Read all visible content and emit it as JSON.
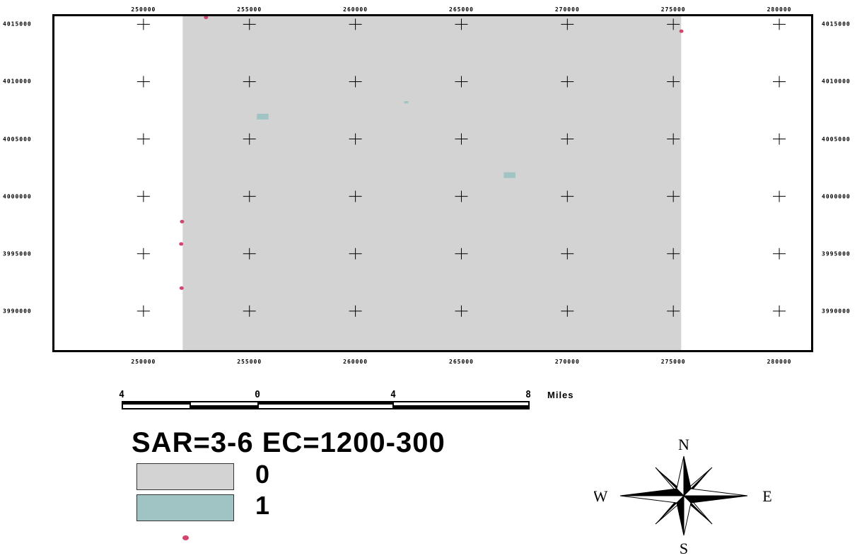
{
  "map": {
    "x_ticks": [
      "250000",
      "255000",
      "260000",
      "265000",
      "270000",
      "275000",
      "280000"
    ],
    "y_ticks": [
      "4015000",
      "4010000",
      "4005000",
      "4000000",
      "3995000",
      "3990000"
    ],
    "x_range": [
      245800,
      281500
    ],
    "y_range": [
      3986600,
      4015700
    ],
    "raster_extent": {
      "x": [
        251850,
        275370
      ],
      "y": [
        3986600,
        4015700
      ]
    },
    "class_patches": [
      {
        "class": "1",
        "x": [
          255350,
          255900
        ],
        "y": [
          4006700,
          4007200
        ]
      },
      {
        "class": "1",
        "x": [
          262300,
          262500
        ],
        "y": [
          4008100,
          4008300
        ]
      },
      {
        "class": "1",
        "x": [
          267000,
          267550
        ],
        "y": [
          4001600,
          4002100
        ]
      }
    ],
    "points": [
      {
        "x": 252950,
        "y": 4015600
      },
      {
        "x": 275380,
        "y": 4014400
      },
      {
        "x": 251820,
        "y": 3997800
      },
      {
        "x": 251780,
        "y": 3995850
      },
      {
        "x": 251800,
        "y": 3992000
      }
    ]
  },
  "scale_bar": {
    "labels": [
      "4",
      "0",
      "4",
      "8"
    ],
    "units": "Miles"
  },
  "legend": {
    "title": "SAR=3-6   EC=1200-300",
    "items": [
      {
        "label": "0",
        "color": "#d3d3d3"
      },
      {
        "label": "1",
        "color": "#a0c4c4"
      }
    ],
    "point_color": "#d4456e"
  },
  "north_arrow": {
    "n": "N",
    "s": "S",
    "e": "E",
    "w": "W"
  },
  "colors": {
    "background": "#ffffff",
    "grid_cross": "#000000"
  }
}
